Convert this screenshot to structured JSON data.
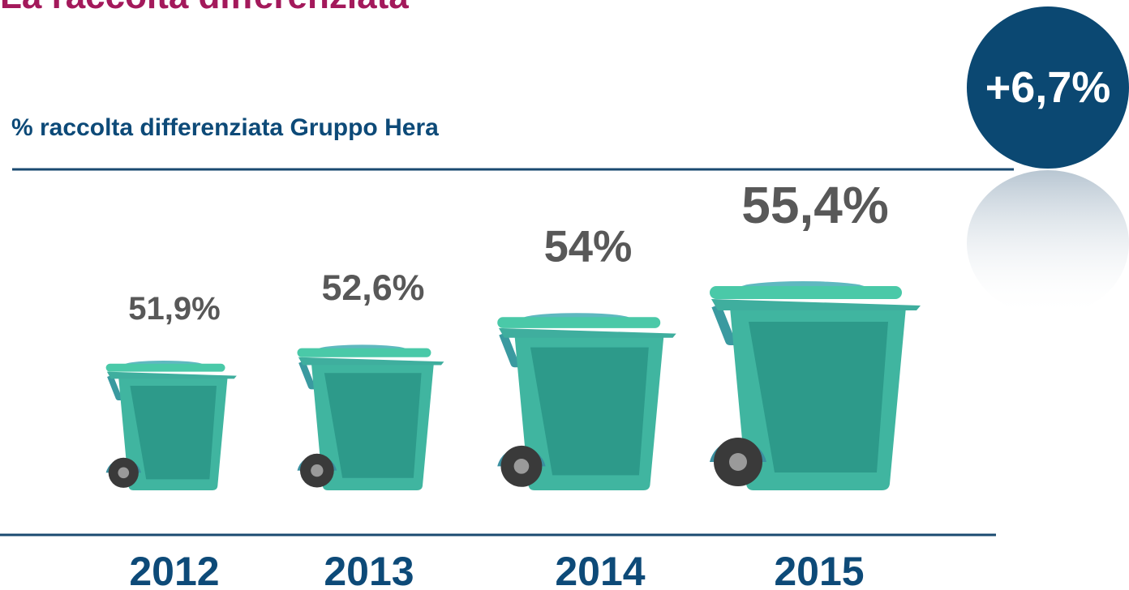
{
  "chart_data": {
    "type": "pictogram",
    "title": "La raccolta differenziata",
    "subtitle": "% raccolta differenziata Gruppo Hera",
    "annotation": "+6,7%",
    "categories": [
      "2012",
      "2013",
      "2014",
      "2015"
    ],
    "values": [
      51.9,
      52.6,
      54,
      55.4
    ],
    "value_labels": [
      "51,9%",
      "52,6%",
      "54%",
      "55,4%"
    ],
    "color": "#40b5a0"
  }
}
